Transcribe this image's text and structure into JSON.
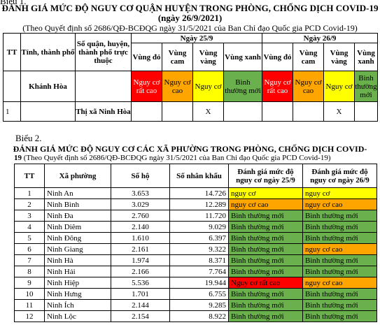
{
  "top_cut": "Biểu 1.",
  "t1": {
    "title": "ĐÁNH GIÁ MỨC ĐỘ NGUY CƠ QUẬN HUYỆN TRONG PHÒNG, CHỐNG DỊCH COVID-19",
    "date": "(ngày 26/9/2021)",
    "basis": "(Theo Quyết định số 2686/QĐ-BCĐQG ngày 31/5/2021 của Ban Chỉ đạo Quốc gia PCD Covid-19)",
    "h_tt": "TT",
    "h_province": "Tỉnh, thành phố",
    "h_district": "Số quận, huyện, thành phố trực thuộc",
    "h_day1": "Ngày 25/9",
    "h_day2": "Ngày 26/9",
    "zones": [
      "Vùng đỏ",
      "Vùng cam",
      "Vùng vàng",
      "Vùng xanh"
    ],
    "risk": [
      "Nguy cơ rất cao",
      "Nguy cơ cao",
      "Nguy cơ",
      "Bình thường mới"
    ],
    "province": "Khánh Hòa",
    "row_tt": "1",
    "row_district": "Thị xã Ninh Hòa",
    "mark1": "X",
    "mark2": "X"
  },
  "t2": {
    "label": "Biểu 2.",
    "title": "ĐÁNH GIÁ MỨC ĐỘ NGUY CƠ CÁC XÃ PHƯỜNG TRONG PHÒNG, CHỐNG DỊCH COVID-",
    "basis_prefix": "19",
    "basis": " (Theo Quyết định số 2686/QĐ-BCĐQG ngày 31/5/2021 của Ban Chỉ đạo Quốc gia PCD Covid-19)",
    "headers": [
      "TT",
      "Xã phường",
      "Số hộ",
      "Số nhân khẩu",
      "Đánh giá mức độ nguy cơ ngày 25/9",
      "Đánh giá mức độ nguy cơ ngày 26/9"
    ],
    "rows": [
      {
        "tt": "1",
        "name": "Ninh An",
        "ho": "3.653",
        "nk": "14.726",
        "d25": "nguy cơ",
        "d26": "nguy cơ",
        "c25": "hy",
        "c26": "hy"
      },
      {
        "tt": "2",
        "name": "Ninh Bình",
        "ho": "3.029",
        "nk": "12.289",
        "d25": "nguy cơ cao",
        "d26": "nguy cơ cao",
        "c25": "ho",
        "c26": "ho"
      },
      {
        "tt": "3",
        "name": "Ninh Đa",
        "ho": "2.760",
        "nk": "11.720",
        "d25": "Bình thường mới",
        "d26": "Bình thường mới",
        "c25": "hg",
        "c26": "hg"
      },
      {
        "tt": "4",
        "name": "Ninh Diêm",
        "ho": "2.140",
        "nk": "9.029",
        "d25": "Bình thường mới",
        "d26": "Bình thường mới",
        "c25": "hg",
        "c26": "hg"
      },
      {
        "tt": "5",
        "name": "Ninh Đông",
        "ho": "1.610",
        "nk": "6.397",
        "d25": "Bình thường mới",
        "d26": "Bình thường mới",
        "c25": "hg",
        "c26": "hg"
      },
      {
        "tt": "6",
        "name": "Ninh Giang",
        "ho": "2.161",
        "nk": "9.322",
        "d25": "Bình thường mới",
        "d26": "nguy cơ cao",
        "c25": "hg",
        "c26": "ho"
      },
      {
        "tt": "7",
        "name": "Ninh Hà",
        "ho": "1.974",
        "nk": "8.371",
        "d25": "Bình thường mới",
        "d26": "Bình thường mới",
        "c25": "hg",
        "c26": "hg"
      },
      {
        "tt": "8",
        "name": "Ninh Hải",
        "ho": "2.166",
        "nk": "7.764",
        "d25": "Bình thường mới",
        "d26": "Bình thường mới",
        "c25": "hg",
        "c26": "hg"
      },
      {
        "tt": "9",
        "name": "Ninh Hiệp",
        "ho": "5.536",
        "nk": "19.944",
        "d25": "Nguy cơ rất cao",
        "d26": "nguy cơ cao",
        "c25": "hr",
        "c26": "ho"
      },
      {
        "tt": "10",
        "name": "Ninh Hưng",
        "ho": "1.701",
        "nk": "6.755",
        "d25": "Bình thường mới",
        "d26": "Bình thường mới",
        "c25": "hg",
        "c26": "hg"
      },
      {
        "tt": "11",
        "name": "Ninh Ích",
        "ho": "2.144",
        "nk": "9.285",
        "d25": "Bình thường mới",
        "d26": "Bình thường mới",
        "c25": "hg",
        "c26": "hg"
      },
      {
        "tt": "12",
        "name": "Ninh Lộc",
        "ho": "2.154",
        "nk": "8.922",
        "d25": "Bình thường mới",
        "d26": "Bình thường mới",
        "c25": "hg",
        "c26": "hg"
      }
    ]
  }
}
